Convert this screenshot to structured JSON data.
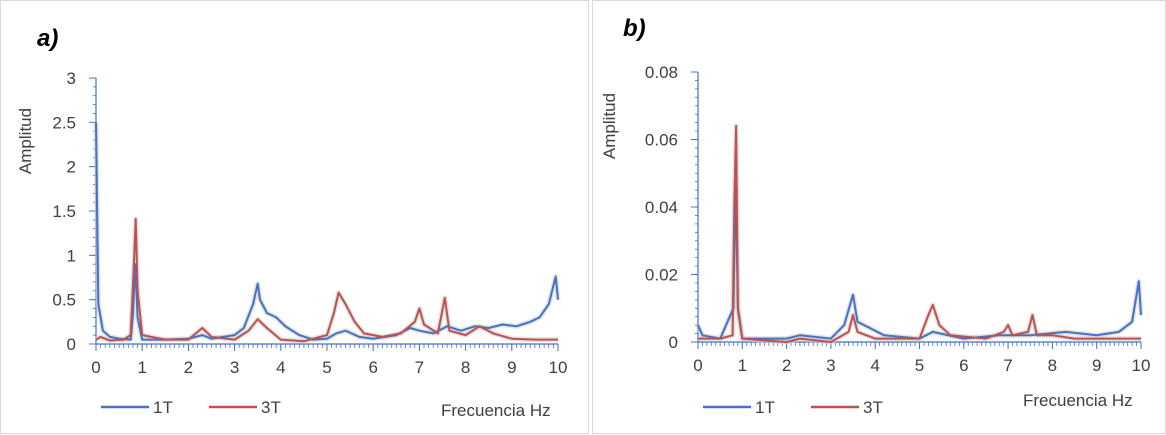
{
  "chart_data": [
    {
      "panel_label": "a)",
      "type": "line",
      "ylabel": "Amplitud",
      "xlabel": "Frecuencia Hz",
      "xlim": [
        0,
        10
      ],
      "ylim": [
        0,
        3
      ],
      "x_ticks": [
        "0",
        "1",
        "2",
        "3",
        "4",
        "5",
        "6",
        "7",
        "8",
        "9",
        "10"
      ],
      "y_ticks": [
        "0",
        "0.5",
        "1",
        "1.5",
        "2",
        "2.5",
        "3"
      ],
      "legend_position": "bottom-left",
      "series": [
        {
          "name": "1T",
          "color": "#4472c4",
          "points": [
            [
              0.0,
              2.5
            ],
            [
              0.05,
              0.45
            ],
            [
              0.1,
              0.3
            ],
            [
              0.15,
              0.15
            ],
            [
              0.3,
              0.08
            ],
            [
              0.5,
              0.06
            ],
            [
              0.75,
              0.05
            ],
            [
              0.8,
              0.35
            ],
            [
              0.85,
              0.9
            ],
            [
              0.9,
              0.3
            ],
            [
              1.0,
              0.05
            ],
            [
              1.5,
              0.05
            ],
            [
              2.0,
              0.06
            ],
            [
              2.3,
              0.1
            ],
            [
              2.5,
              0.06
            ],
            [
              3.0,
              0.1
            ],
            [
              3.2,
              0.18
            ],
            [
              3.4,
              0.45
            ],
            [
              3.5,
              0.68
            ],
            [
              3.55,
              0.5
            ],
            [
              3.7,
              0.35
            ],
            [
              3.9,
              0.3
            ],
            [
              4.1,
              0.2
            ],
            [
              4.4,
              0.1
            ],
            [
              4.7,
              0.05
            ],
            [
              5.0,
              0.06
            ],
            [
              5.2,
              0.12
            ],
            [
              5.4,
              0.15
            ],
            [
              5.7,
              0.08
            ],
            [
              6.0,
              0.06
            ],
            [
              6.5,
              0.1
            ],
            [
              6.8,
              0.18
            ],
            [
              7.0,
              0.15
            ],
            [
              7.3,
              0.12
            ],
            [
              7.6,
              0.2
            ],
            [
              7.9,
              0.15
            ],
            [
              8.2,
              0.2
            ],
            [
              8.5,
              0.18
            ],
            [
              8.8,
              0.22
            ],
            [
              9.1,
              0.2
            ],
            [
              9.4,
              0.25
            ],
            [
              9.6,
              0.3
            ],
            [
              9.8,
              0.45
            ],
            [
              9.95,
              0.76
            ],
            [
              10.0,
              0.5
            ]
          ]
        },
        {
          "name": "3T",
          "color": "#c0504d",
          "points": [
            [
              0.0,
              0.05
            ],
            [
              0.1,
              0.08
            ],
            [
              0.3,
              0.04
            ],
            [
              0.6,
              0.05
            ],
            [
              0.75,
              0.1
            ],
            [
              0.82,
              0.9
            ],
            [
              0.86,
              1.41
            ],
            [
              0.9,
              0.6
            ],
            [
              1.0,
              0.1
            ],
            [
              1.5,
              0.05
            ],
            [
              2.0,
              0.05
            ],
            [
              2.3,
              0.18
            ],
            [
              2.5,
              0.08
            ],
            [
              3.0,
              0.05
            ],
            [
              3.3,
              0.15
            ],
            [
              3.5,
              0.28
            ],
            [
              3.7,
              0.18
            ],
            [
              4.0,
              0.05
            ],
            [
              4.5,
              0.03
            ],
            [
              5.0,
              0.1
            ],
            [
              5.15,
              0.35
            ],
            [
              5.25,
              0.58
            ],
            [
              5.4,
              0.45
            ],
            [
              5.6,
              0.25
            ],
            [
              5.8,
              0.12
            ],
            [
              6.2,
              0.08
            ],
            [
              6.6,
              0.12
            ],
            [
              6.9,
              0.25
            ],
            [
              7.0,
              0.4
            ],
            [
              7.1,
              0.22
            ],
            [
              7.4,
              0.12
            ],
            [
              7.55,
              0.52
            ],
            [
              7.65,
              0.15
            ],
            [
              8.0,
              0.1
            ],
            [
              8.3,
              0.2
            ],
            [
              8.6,
              0.12
            ],
            [
              9.0,
              0.06
            ],
            [
              9.5,
              0.05
            ],
            [
              10.0,
              0.05
            ]
          ]
        }
      ]
    },
    {
      "panel_label": "b)",
      "type": "line",
      "ylabel": "Amplitud",
      "xlabel": "Frecuencia Hz",
      "xlim": [
        0,
        10
      ],
      "ylim": [
        0,
        0.08
      ],
      "x_ticks": [
        "0",
        "1",
        "2",
        "3",
        "4",
        "5",
        "6",
        "7",
        "8",
        "9",
        "10"
      ],
      "y_ticks": [
        "0",
        "0.02",
        "0.04",
        "0.06",
        "0.08"
      ],
      "legend_position": "bottom-left",
      "series": [
        {
          "name": "1T",
          "color": "#4472c4",
          "points": [
            [
              0.0,
              0.005
            ],
            [
              0.1,
              0.002
            ],
            [
              0.5,
              0.001
            ],
            [
              0.8,
              0.01
            ],
            [
              0.85,
              0.048
            ],
            [
              0.9,
              0.01
            ],
            [
              1.0,
              0.001
            ],
            [
              2.0,
              0.001
            ],
            [
              2.3,
              0.002
            ],
            [
              3.0,
              0.001
            ],
            [
              3.3,
              0.005
            ],
            [
              3.5,
              0.014
            ],
            [
              3.6,
              0.006
            ],
            [
              3.9,
              0.004
            ],
            [
              4.2,
              0.002
            ],
            [
              5.0,
              0.001
            ],
            [
              5.3,
              0.003
            ],
            [
              6.0,
              0.001
            ],
            [
              6.8,
              0.002
            ],
            [
              7.5,
              0.002
            ],
            [
              8.3,
              0.003
            ],
            [
              9.0,
              0.002
            ],
            [
              9.5,
              0.003
            ],
            [
              9.8,
              0.006
            ],
            [
              9.95,
              0.018
            ],
            [
              10.0,
              0.008
            ]
          ]
        },
        {
          "name": "3T",
          "color": "#c0504d",
          "points": [
            [
              0.0,
              0.001
            ],
            [
              0.5,
              0.001
            ],
            [
              0.78,
              0.002
            ],
            [
              0.82,
              0.04
            ],
            [
              0.86,
              0.064
            ],
            [
              0.9,
              0.01
            ],
            [
              1.0,
              0.001
            ],
            [
              2.0,
              0.0
            ],
            [
              2.3,
              0.001
            ],
            [
              3.0,
              0.0
            ],
            [
              3.4,
              0.003
            ],
            [
              3.5,
              0.008
            ],
            [
              3.6,
              0.003
            ],
            [
              4.0,
              0.001
            ],
            [
              5.0,
              0.001
            ],
            [
              5.2,
              0.008
            ],
            [
              5.3,
              0.011
            ],
            [
              5.45,
              0.005
            ],
            [
              5.7,
              0.002
            ],
            [
              6.5,
              0.001
            ],
            [
              6.9,
              0.003
            ],
            [
              7.0,
              0.005
            ],
            [
              7.1,
              0.002
            ],
            [
              7.45,
              0.003
            ],
            [
              7.55,
              0.008
            ],
            [
              7.65,
              0.002
            ],
            [
              8.0,
              0.002
            ],
            [
              8.5,
              0.001
            ],
            [
              9.0,
              0.001
            ],
            [
              10.0,
              0.001
            ]
          ]
        }
      ]
    }
  ]
}
